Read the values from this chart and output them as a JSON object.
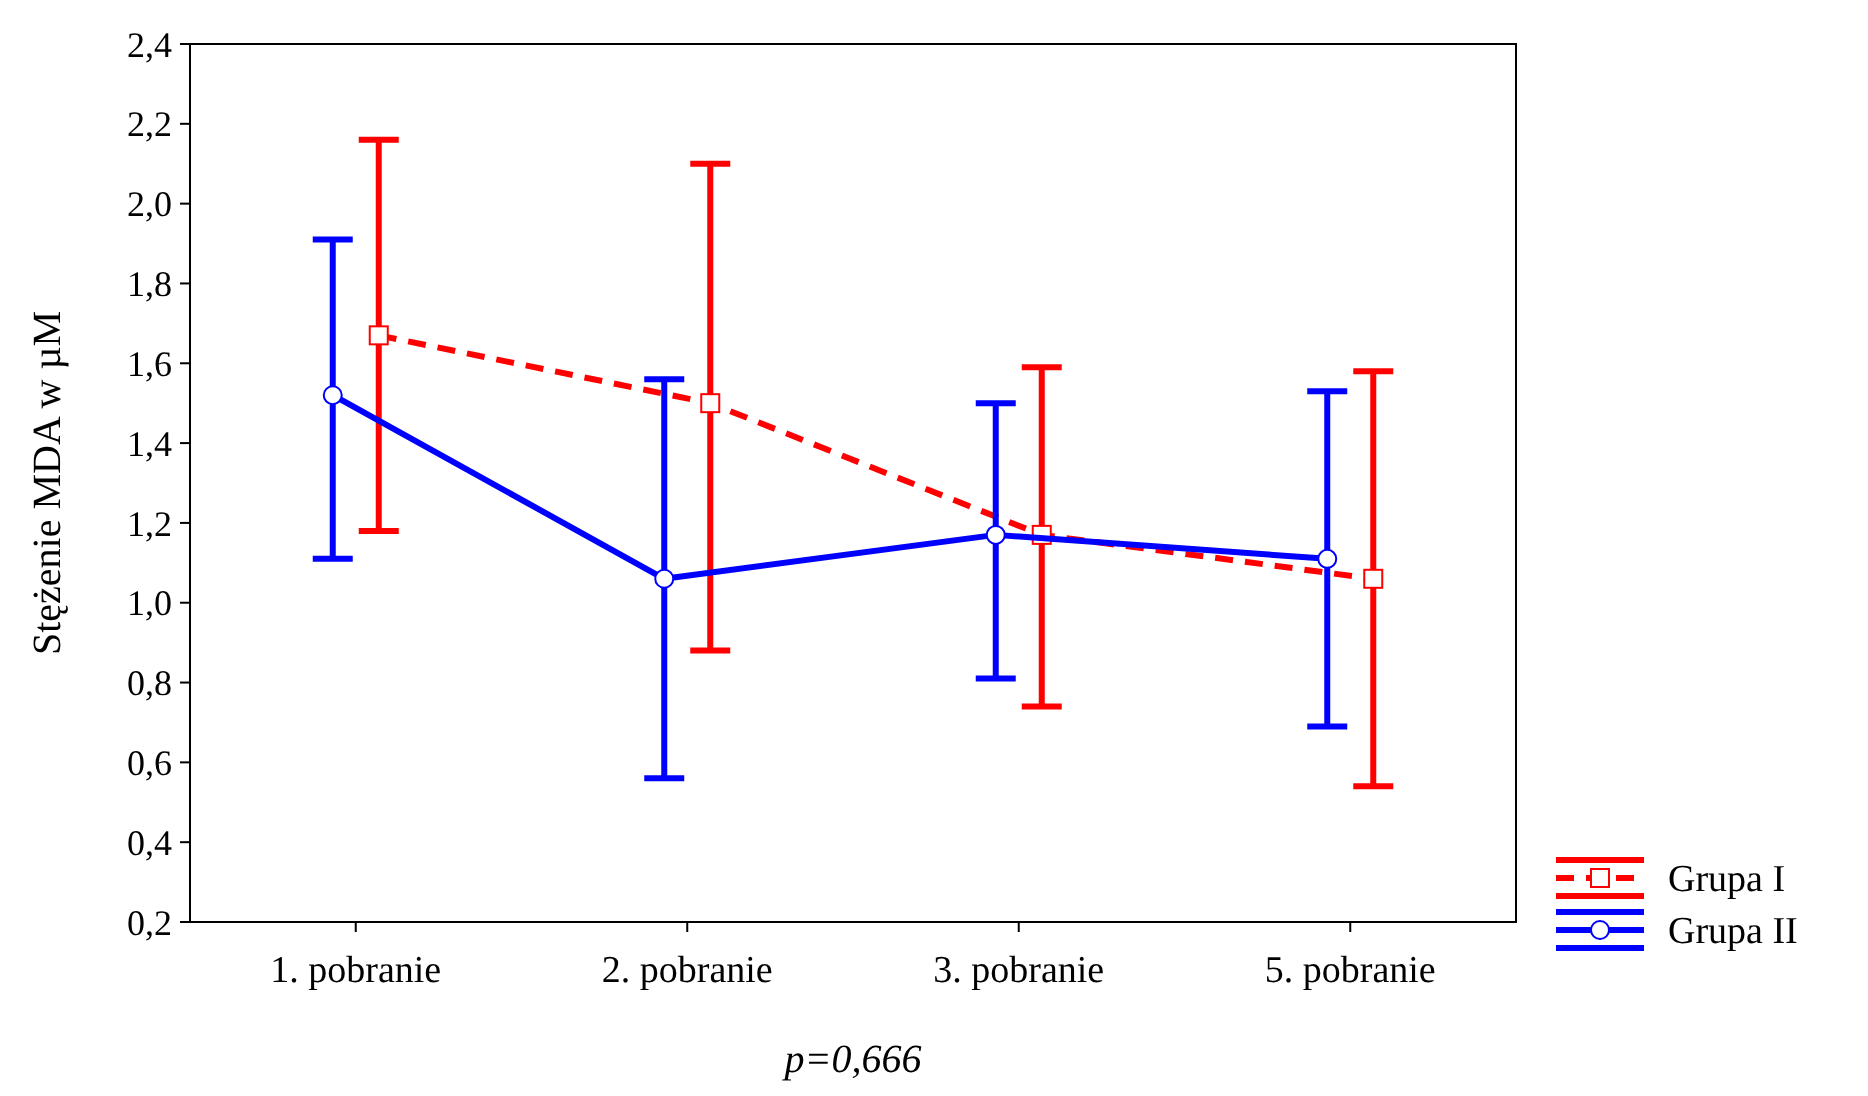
{
  "chart_data": {
    "type": "line",
    "ylabel": "Stężenie MDA w µM",
    "categories": [
      "1. pobranie",
      "2. pobranie",
      "3. pobranie",
      "5. pobranie"
    ],
    "series": [
      {
        "name": "Grupa I",
        "color": "#ff0000",
        "line_style": "dashed",
        "marker": "square",
        "values": [
          1.67,
          1.5,
          1.17,
          1.06
        ],
        "errors": [
          [
            1.18,
            2.16
          ],
          [
            0.88,
            2.1
          ],
          [
            0.74,
            1.59
          ],
          [
            0.54,
            1.58
          ]
        ]
      },
      {
        "name": "Grupa II",
        "color": "#0000ff",
        "line_style": "solid",
        "marker": "circle",
        "values": [
          1.52,
          1.06,
          1.17,
          1.11
        ],
        "errors": [
          [
            1.11,
            1.91
          ],
          [
            0.56,
            1.56
          ],
          [
            0.81,
            1.5
          ],
          [
            0.69,
            1.53
          ]
        ]
      }
    ],
    "ylim": [
      0.2,
      2.4
    ],
    "yticks": [
      {
        "value": 0.2,
        "label": "0,2"
      },
      {
        "value": 0.4,
        "label": "0,4"
      },
      {
        "value": 0.6,
        "label": "0,6"
      },
      {
        "value": 0.8,
        "label": "0,8"
      },
      {
        "value": 1.0,
        "label": "1,0"
      },
      {
        "value": 1.2,
        "label": "1,2"
      },
      {
        "value": 1.4,
        "label": "1,4"
      },
      {
        "value": 1.6,
        "label": "1,6"
      },
      {
        "value": 1.8,
        "label": "1,8"
      },
      {
        "value": 2.0,
        "label": "2,0"
      },
      {
        "value": 2.2,
        "label": "2,2"
      },
      {
        "value": 2.4,
        "label": "2,4"
      }
    ],
    "grid": false,
    "legend": "bottom right",
    "annotations": [
      "p=0,666"
    ]
  }
}
